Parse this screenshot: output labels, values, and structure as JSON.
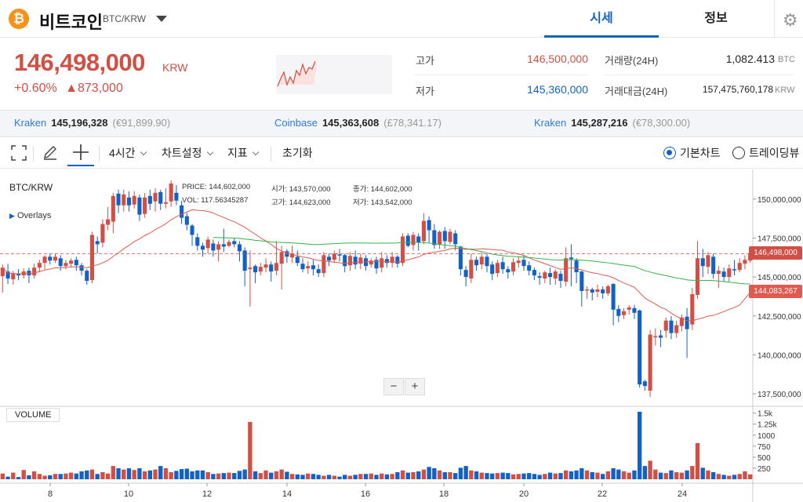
{
  "header": {
    "logo_glyph": "₿",
    "coin_name": "비트코인",
    "pair": "BTC/KRW",
    "tabs": [
      {
        "label": "시세"
      },
      {
        "label": "정보"
      }
    ],
    "settings_icon": "gear-icon"
  },
  "price": {
    "value": "146,498,000",
    "unit": "KRW",
    "change_pct": "+0.60%",
    "change_abs": "▲873,000"
  },
  "stats": {
    "high_label": "고가",
    "high_value": "146,500,000",
    "low_label": "저가",
    "low_value": "145,360,000",
    "volume_label": "거래량(24H)",
    "volume_value": "1,082.413",
    "volume_unit": "BTC",
    "amount_label": "거래대금(24H)",
    "amount_value": "157,475,760,178",
    "amount_unit": "KRW"
  },
  "exchanges": [
    {
      "name": "Kraken",
      "price": "145,196,328",
      "foreign": "(€91,899.90)"
    },
    {
      "name": "Coinbase",
      "price": "145,363,608",
      "foreign": "(£78,341.17)"
    },
    {
      "name": "Kraken",
      "price": "145,287,216",
      "foreign": "(€78,300.00)"
    }
  ],
  "toolbar": {
    "interval": "4시간",
    "chart_settings": "차트설정",
    "indicators": "지표",
    "reset": "초기화",
    "basic_chart": "기본차트",
    "tradingview": "트레이딩뷰"
  },
  "chart_overlay": {
    "symbol": "BTC/KRW",
    "overlays": "Overlays",
    "price_label": "PRICE:",
    "price_value": "144,602,000",
    "vol_label": "VOL:",
    "vol_value": "117.56345287",
    "open_label": "시가:",
    "open_value": "143,570,000",
    "high_label": "고가:",
    "high_value": "144,623,000",
    "close_label": "종가:",
    "close_value": "144,602,000",
    "low_label": "저가:",
    "low_value": "143,542,000",
    "volume_title": "VOLUME",
    "zoom_out": "−",
    "zoom_in": "+"
  },
  "colors": {
    "up": "#d24f45",
    "down": "#1261c4",
    "ma_fast": "#e05a50",
    "ma_slow": "#33b24a"
  },
  "chart_data": {
    "type": "candlestick",
    "x_ticks": [
      "8",
      "10",
      "12",
      "14",
      "16",
      "18",
      "20",
      "22",
      "24"
    ],
    "y_ticks": [
      "150,000,000",
      "147,500,000",
      "145,000,000",
      "142,500,000",
      "140,000,000",
      "137,500,000"
    ],
    "y_range": [
      137000000,
      151500000
    ],
    "vol_ticks": [
      "1.5k",
      "1.25k",
      "1000",
      "750",
      "500",
      "250"
    ],
    "current_price": "146,498,000",
    "ma_price": "144,083,267",
    "points": [
      [
        145.05,
        145.6,
        144.0,
        145.8,
        130
      ],
      [
        145.35,
        144.9,
        144.55,
        145.85,
        60
      ],
      [
        144.85,
        145.2,
        144.5,
        145.4,
        150
      ],
      [
        145.2,
        145.1,
        144.8,
        145.5,
        50
      ],
      [
        145.1,
        145.35,
        144.9,
        145.55,
        210
      ],
      [
        145.4,
        145.1,
        144.6,
        145.6,
        90
      ],
      [
        145.1,
        145.6,
        144.9,
        145.85,
        180
      ],
      [
        145.6,
        145.9,
        145.3,
        146.1,
        120
      ],
      [
        145.9,
        146.3,
        145.5,
        146.4,
        80
      ],
      [
        146.3,
        146.05,
        145.8,
        146.5,
        90
      ],
      [
        146.05,
        146.3,
        145.9,
        146.5,
        120
      ],
      [
        146.2,
        145.7,
        145.4,
        146.4,
        120
      ],
      [
        145.7,
        145.9,
        145.5,
        146.1,
        130
      ],
      [
        145.85,
        146.05,
        145.6,
        146.2,
        150
      ],
      [
        146.1,
        145.75,
        145.4,
        146.3,
        130
      ],
      [
        145.75,
        145.4,
        145.1,
        145.9,
        180
      ],
      [
        145.4,
        144.75,
        144.5,
        145.5,
        200
      ],
      [
        144.8,
        147.7,
        144.6,
        147.9,
        220
      ],
      [
        147.3,
        147.1,
        146.5,
        147.6,
        120
      ],
      [
        147.2,
        148.4,
        146.9,
        148.7,
        160
      ],
      [
        148.35,
        148.7,
        148.0,
        149.5,
        130
      ],
      [
        148.55,
        150.2,
        147.8,
        150.4,
        300
      ],
      [
        150.35,
        149.6,
        149.1,
        150.6,
        250
      ],
      [
        149.6,
        150.3,
        149.2,
        150.6,
        220
      ],
      [
        150.1,
        149.6,
        149.2,
        150.5,
        250
      ],
      [
        149.65,
        150.2,
        149.4,
        150.5,
        210
      ],
      [
        150.1,
        149.0,
        148.6,
        150.3,
        250
      ],
      [
        149.05,
        150.1,
        148.8,
        150.4,
        180
      ],
      [
        150.2,
        149.7,
        149.3,
        150.6,
        200
      ],
      [
        149.85,
        150.4,
        149.2,
        150.7,
        220
      ],
      [
        150.45,
        149.7,
        149.3,
        150.6,
        300
      ],
      [
        149.7,
        149.8,
        149.4,
        150.7,
        250
      ],
      [
        149.85,
        151.0,
        149.5,
        151.2,
        160
      ],
      [
        150.4,
        149.9,
        149.6,
        150.9,
        190
      ],
      [
        149.6,
        148.8,
        148.4,
        149.9,
        230
      ],
      [
        148.9,
        148.35,
        148.0,
        149.1,
        240
      ],
      [
        148.3,
        147.7,
        147.0,
        148.4,
        180
      ],
      [
        147.55,
        147.0,
        146.7,
        147.8,
        200
      ],
      [
        147.0,
        146.75,
        146.3,
        147.2,
        200
      ],
      [
        146.85,
        147.4,
        146.5,
        147.6,
        160
      ],
      [
        147.15,
        146.7,
        146.3,
        147.4,
        120
      ],
      [
        146.75,
        147.1,
        146.0,
        147.3,
        130
      ],
      [
        147.1,
        146.95,
        146.6,
        148.1,
        140
      ],
      [
        147.0,
        147.25,
        146.9,
        147.4,
        150
      ],
      [
        147.3,
        147.1,
        146.9,
        147.5,
        140
      ],
      [
        147.1,
        146.65,
        146.0,
        147.3,
        190
      ],
      [
        146.7,
        145.4,
        144.4,
        146.9,
        220
      ],
      [
        145.5,
        145.6,
        143.1,
        146.7,
        1300
      ],
      [
        145.7,
        145.3,
        144.6,
        145.8,
        180
      ],
      [
        145.35,
        145.65,
        145.1,
        145.9,
        140
      ],
      [
        145.6,
        145.8,
        145.3,
        146.2,
        200
      ],
      [
        145.8,
        145.35,
        144.7,
        146.0,
        150
      ],
      [
        145.4,
        145.9,
        145.1,
        147.3,
        180
      ],
      [
        145.85,
        146.6,
        144.2,
        147.0,
        220
      ],
      [
        146.65,
        146.3,
        145.9,
        146.8,
        170
      ],
      [
        146.25,
        146.5,
        145.9,
        147.0,
        120
      ],
      [
        146.3,
        145.9,
        145.7,
        146.7,
        110
      ],
      [
        145.85,
        145.5,
        145.3,
        146.2,
        100
      ],
      [
        145.55,
        145.7,
        145.2,
        146.0,
        130
      ],
      [
        145.75,
        145.5,
        145.1,
        146.1,
        120
      ],
      [
        145.5,
        145.25,
        145.0,
        145.8,
        100
      ],
      [
        145.25,
        146.4,
        145.0,
        146.6,
        80
      ],
      [
        146.3,
        146.05,
        145.7,
        146.5,
        100
      ],
      [
        146.1,
        146.5,
        145.9,
        146.7,
        80
      ],
      [
        146.45,
        146.4,
        146.0,
        146.8,
        60
      ],
      [
        146.4,
        145.7,
        145.3,
        146.5,
        100
      ],
      [
        145.75,
        146.35,
        145.4,
        146.6,
        80
      ],
      [
        146.3,
        145.8,
        145.5,
        146.7,
        100
      ],
      [
        145.85,
        146.25,
        145.5,
        146.5,
        120
      ],
      [
        146.2,
        145.7,
        145.4,
        146.4,
        120
      ],
      [
        145.8,
        146.05,
        145.6,
        146.2,
        130
      ],
      [
        146.1,
        145.55,
        145.2,
        146.3,
        100
      ],
      [
        145.6,
        146.2,
        145.3,
        146.6,
        130
      ],
      [
        146.15,
        145.9,
        145.6,
        146.4,
        110
      ],
      [
        145.9,
        146.3,
        145.6,
        146.6,
        120
      ],
      [
        146.3,
        145.85,
        145.6,
        146.4,
        160
      ],
      [
        145.9,
        147.6,
        145.7,
        147.8,
        200
      ],
      [
        147.65,
        147.0,
        146.9,
        147.8,
        150
      ],
      [
        147.05,
        147.7,
        146.7,
        147.9,
        160
      ],
      [
        147.6,
        147.2,
        146.7,
        147.8,
        180
      ],
      [
        147.3,
        148.6,
        147.1,
        149.1,
        220
      ],
      [
        148.65,
        148.0,
        147.2,
        148.9,
        280
      ],
      [
        148.0,
        147.05,
        146.8,
        148.4,
        250
      ],
      [
        147.1,
        147.9,
        146.8,
        148.0,
        200
      ],
      [
        147.95,
        147.3,
        146.8,
        148.2,
        160
      ],
      [
        147.25,
        147.9,
        147.1,
        148.1,
        160
      ],
      [
        147.8,
        147.1,
        146.7,
        148.0,
        140
      ],
      [
        146.95,
        145.5,
        145.1,
        147.0,
        260
      ],
      [
        145.45,
        145.0,
        144.4,
        145.7,
        300
      ],
      [
        144.9,
        146.1,
        144.6,
        146.5,
        200
      ],
      [
        146.1,
        145.75,
        145.4,
        146.3,
        180
      ],
      [
        145.8,
        146.3,
        145.5,
        146.6,
        150
      ],
      [
        146.3,
        145.7,
        145.3,
        146.5,
        140
      ],
      [
        145.8,
        145.2,
        144.8,
        146.0,
        130
      ],
      [
        145.25,
        145.9,
        145.0,
        146.1,
        140
      ],
      [
        145.95,
        145.5,
        145.2,
        146.3,
        150
      ],
      [
        145.5,
        145.3,
        144.9,
        145.7,
        140
      ],
      [
        145.35,
        145.95,
        145.1,
        146.2,
        110
      ],
      [
        145.9,
        146.05,
        145.6,
        146.3,
        120
      ],
      [
        146.1,
        145.7,
        145.4,
        146.4,
        130
      ],
      [
        145.75,
        145.4,
        145.1,
        146.0,
        140
      ],
      [
        145.45,
        145.1,
        144.8,
        145.6,
        120
      ],
      [
        145.05,
        144.95,
        144.5,
        145.3,
        100
      ],
      [
        144.9,
        145.3,
        144.6,
        145.4,
        120
      ],
      [
        145.25,
        145.0,
        144.5,
        145.6,
        150
      ],
      [
        144.9,
        145.35,
        144.5,
        145.5,
        130
      ],
      [
        145.2,
        144.75,
        144.3,
        145.4,
        140
      ],
      [
        144.7,
        146.2,
        144.4,
        146.9,
        200
      ],
      [
        146.25,
        146.15,
        144.4,
        147.1,
        180
      ],
      [
        146.05,
        145.3,
        144.6,
        146.2,
        200
      ],
      [
        145.35,
        144.1,
        143.1,
        145.4,
        250
      ],
      [
        144.15,
        144.2,
        143.6,
        144.4,
        200
      ],
      [
        144.2,
        144.0,
        143.5,
        144.3,
        160
      ],
      [
        144.05,
        144.2,
        143.7,
        144.5,
        150
      ],
      [
        144.2,
        143.95,
        143.6,
        144.4,
        120
      ],
      [
        143.95,
        144.4,
        143.8,
        144.5,
        180
      ],
      [
        144.55,
        142.9,
        141.9,
        144.6,
        250
      ],
      [
        142.95,
        142.5,
        142.1,
        143.2,
        220
      ],
      [
        142.55,
        142.8,
        142.3,
        143.0,
        180
      ],
      [
        142.9,
        143.05,
        142.6,
        143.2,
        150
      ],
      [
        143.0,
        142.7,
        142.3,
        143.2,
        200
      ],
      [
        142.85,
        138.1,
        137.9,
        142.9,
        1530
      ],
      [
        138.3,
        138.0,
        137.7,
        138.4,
        300
      ],
      [
        137.7,
        141.3,
        137.3,
        141.6,
        420
      ],
      [
        141.15,
        141.2,
        140.6,
        141.7,
        220
      ],
      [
        141.25,
        141.1,
        140.5,
        141.6,
        150
      ],
      [
        141.55,
        142.2,
        141.1,
        142.4,
        140
      ],
      [
        142.2,
        141.4,
        141.0,
        142.5,
        200
      ],
      [
        141.4,
        141.9,
        141.1,
        142.2,
        160
      ],
      [
        141.85,
        142.4,
        141.5,
        142.6,
        150
      ],
      [
        142.45,
        141.65,
        139.8,
        143.0,
        200
      ],
      [
        141.95,
        143.9,
        141.6,
        144.3,
        300
      ],
      [
        143.85,
        146.2,
        143.6,
        147.3,
        820
      ],
      [
        146.2,
        145.7,
        145.0,
        146.8,
        260
      ],
      [
        145.65,
        146.4,
        145.2,
        146.6,
        200
      ],
      [
        146.3,
        145.2,
        144.9,
        146.5,
        160
      ],
      [
        145.2,
        145.4,
        144.3,
        145.7,
        120
      ],
      [
        145.35,
        145.0,
        144.7,
        145.6,
        100
      ],
      [
        145.0,
        145.55,
        144.7,
        145.8,
        80
      ],
      [
        145.5,
        145.45,
        145.1,
        146.1,
        100
      ],
      [
        145.45,
        145.9,
        145.3,
        146.2,
        120
      ],
      [
        145.85,
        146.1,
        145.5,
        146.4,
        180
      ],
      [
        146.05,
        146.5,
        145.9,
        146.7,
        110
      ]
    ]
  }
}
